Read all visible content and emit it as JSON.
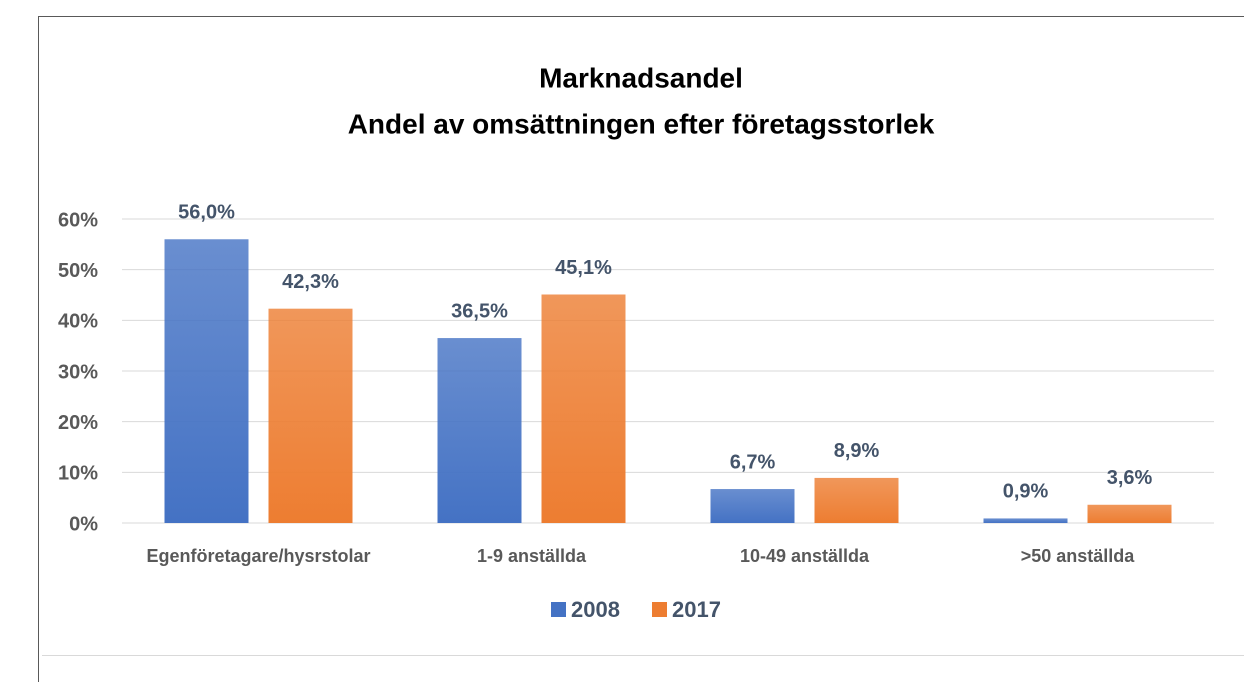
{
  "chart_data": {
    "type": "bar",
    "title": "Marknadsandel",
    "subtitle": "Andel av omsättningen efter företagsstorlek",
    "categories": [
      "Egenföretagare/hysrstolar",
      "1-9 anställda",
      "10-49 anställda",
      ">50 anställda"
    ],
    "series": [
      {
        "name": "2008",
        "color": "#4472c4",
        "values": [
          56.0,
          36.5,
          6.7,
          0.9
        ],
        "value_labels": [
          "56,0%",
          "36,5%",
          "6,7%",
          "0,9%"
        ]
      },
      {
        "name": "2017",
        "color": "#ed7d31",
        "values": [
          42.3,
          45.1,
          8.9,
          3.6
        ],
        "value_labels": [
          "42,3%",
          "45,1%",
          "8,9%",
          "3,6%"
        ]
      }
    ],
    "ylim": [
      0,
      60
    ],
    "yticks": [
      {
        "value": 0,
        "label": "0%"
      },
      {
        "value": 10,
        "label": "10%"
      },
      {
        "value": 20,
        "label": "20%"
      },
      {
        "value": 30,
        "label": "30%"
      },
      {
        "value": 40,
        "label": "40%"
      },
      {
        "value": 50,
        "label": "50%"
      },
      {
        "value": 60,
        "label": "60%"
      }
    ],
    "grid": true,
    "legend": "bottom"
  }
}
